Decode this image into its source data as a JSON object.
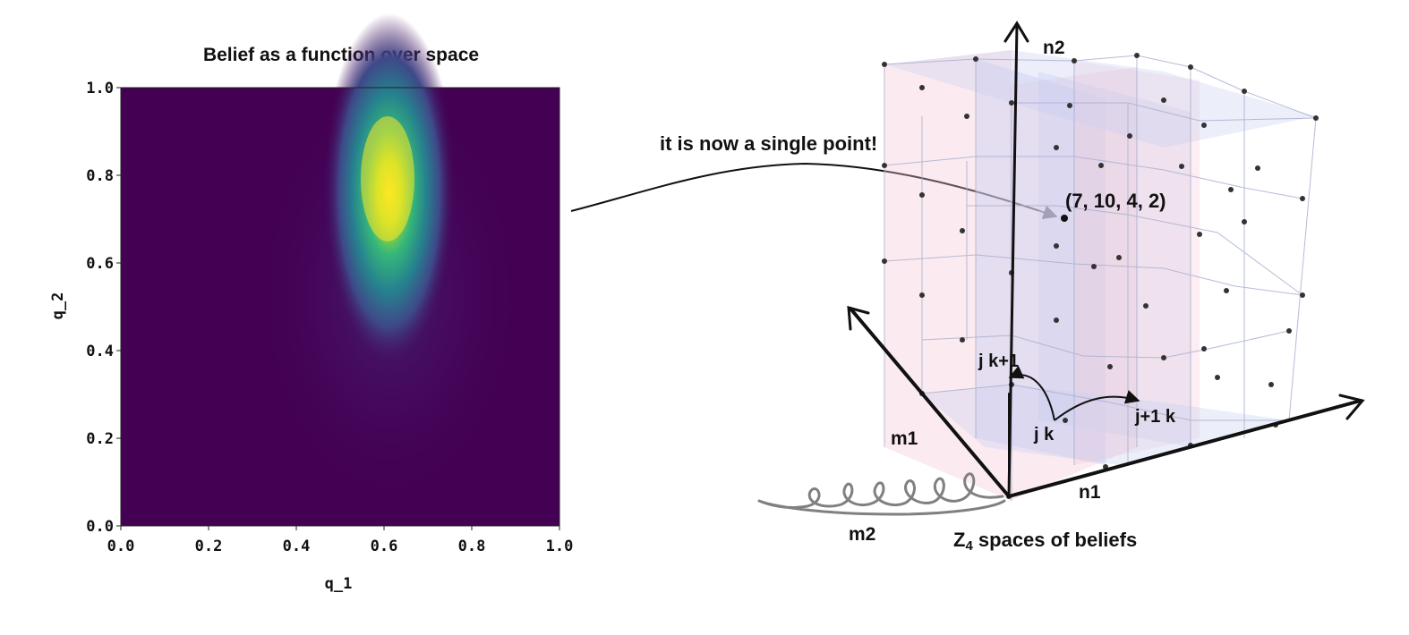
{
  "left_plot": {
    "title": "Belief as a function over space",
    "xlabel": "q_1",
    "ylabel": "q_2",
    "x_ticks": [
      "0.0",
      "0.2",
      "0.4",
      "0.6",
      "0.8",
      "1.0"
    ],
    "y_ticks": [
      "0.0",
      "0.2",
      "0.4",
      "0.6",
      "0.8",
      "1.0"
    ],
    "colormap": "viridis",
    "peak": {
      "q_1": 0.62,
      "q_2": 0.75
    }
  },
  "diagram": {
    "callout": "it is now a single point!",
    "point_label": "(7, 10, 4, 2)",
    "axis_labels": {
      "n2": "n2",
      "n1": "n1",
      "m1": "m1",
      "m2": "m2"
    },
    "node_labels": {
      "jk1": "j k+1",
      "jk": "j k",
      "j1k": "j+1 k"
    },
    "caption_main": "Z",
    "caption_sub": "4",
    "caption_rest": " spaces of beliefs",
    "colors": {
      "pink_plane": "#f4c6d4",
      "blue_plane": "#c9cdf0",
      "axis": "#111111",
      "scribble": "#808080"
    }
  }
}
